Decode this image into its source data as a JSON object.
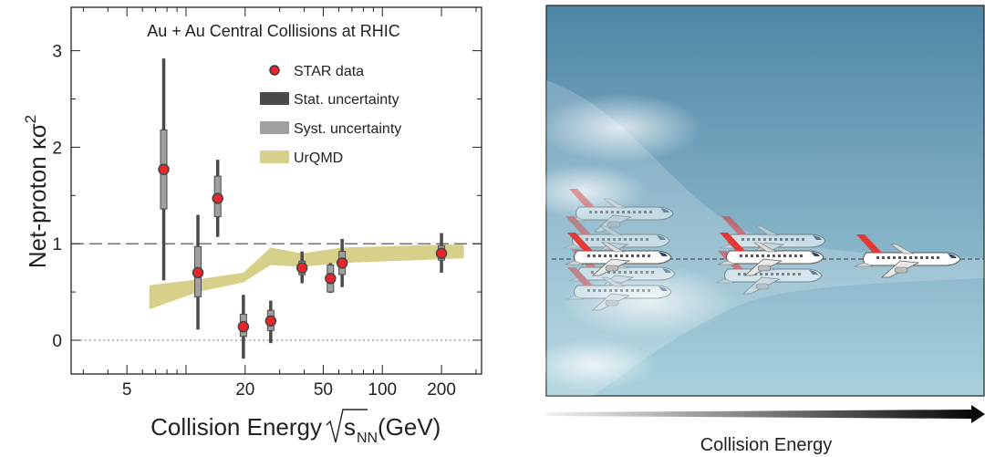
{
  "chart_data": {
    "type": "scatter",
    "title": "Au + Au Central Collisions at RHIC",
    "xlabel_main": "Collision Energy",
    "xlabel_sqrt": "s",
    "xlabel_sub": "NN",
    "xlabel_unit": "(GeV)",
    "ylabel": "Net-proton κσ",
    "ylabel_sup": "2",
    "x_scale": "log",
    "xlim": [
      2.6,
      320
    ],
    "ylim": [
      -0.35,
      3.45
    ],
    "x_ticks": [
      5,
      20,
      50,
      100,
      200
    ],
    "x_tick_labels": [
      "5",
      "20",
      "50",
      "100",
      "200"
    ],
    "y_ticks": [
      0,
      1,
      2,
      3
    ],
    "y_tick_labels": [
      "0",
      "1",
      "2",
      "3"
    ],
    "reference_lines": [
      {
        "y": 1,
        "style": "dashed"
      },
      {
        "y": 0,
        "style": "dotted"
      }
    ],
    "legend": {
      "placement": "top-right",
      "entries": [
        {
          "label": "STAR data",
          "kind": "marker",
          "color": "#e8262b"
        },
        {
          "label": "Stat. uncertainty",
          "kind": "box",
          "color": "#4a4a4a"
        },
        {
          "label": "Syst. uncertainty",
          "kind": "box",
          "color": "#a0a0a0"
        },
        {
          "label": "UrQMD",
          "kind": "box",
          "color": "#d6d08a"
        }
      ]
    },
    "series": [
      {
        "name": "STAR data",
        "points": [
          {
            "x": 7.7,
            "y": 1.77,
            "stat": [
              0.62,
              2.92
            ],
            "syst": [
              1.36,
              2.18
            ]
          },
          {
            "x": 11.5,
            "y": 0.7,
            "stat": [
              0.11,
              1.3
            ],
            "syst": [
              0.45,
              0.97
            ]
          },
          {
            "x": 14.5,
            "y": 1.47,
            "stat": [
              1.07,
              1.87
            ],
            "syst": [
              1.28,
              1.7
            ]
          },
          {
            "x": 19.6,
            "y": 0.14,
            "stat": [
              -0.19,
              0.47
            ],
            "syst": [
              0.04,
              0.27
            ]
          },
          {
            "x": 27,
            "y": 0.2,
            "stat": [
              -0.03,
              0.41
            ],
            "syst": [
              0.1,
              0.31
            ]
          },
          {
            "x": 39,
            "y": 0.75,
            "stat": [
              0.59,
              0.92
            ],
            "syst": [
              0.68,
              0.82
            ]
          },
          {
            "x": 54.4,
            "y": 0.64,
            "stat": [
              0.49,
              0.8
            ],
            "syst": [
              0.5,
              0.78
            ]
          },
          {
            "x": 62.4,
            "y": 0.8,
            "stat": [
              0.55,
              1.05
            ],
            "syst": [
              0.68,
              0.92
            ]
          },
          {
            "x": 200,
            "y": 0.9,
            "stat": [
              0.7,
              1.11
            ],
            "syst": [
              0.83,
              0.98
            ]
          }
        ]
      },
      {
        "name": "UrQMD",
        "band": [
          {
            "x": 6.5,
            "lo": 0.32,
            "hi": 0.57
          },
          {
            "x": 11.5,
            "lo": 0.5,
            "hi": 0.63
          },
          {
            "x": 19.6,
            "lo": 0.6,
            "hi": 0.7
          },
          {
            "x": 27,
            "lo": 0.78,
            "hi": 0.96
          },
          {
            "x": 39,
            "lo": 0.76,
            "hi": 0.9
          },
          {
            "x": 62.4,
            "lo": 0.8,
            "hi": 0.96
          },
          {
            "x": 200,
            "lo": 0.84,
            "hi": 0.99
          },
          {
            "x": 260,
            "lo": 0.85,
            "hi": 0.99
          }
        ]
      }
    ]
  },
  "illustration": {
    "caption": "Collision Energy",
    "sky_top": "#4f86a6",
    "sky_bottom": "#a9d1dd",
    "plane_tail_color": "#e23a36"
  }
}
